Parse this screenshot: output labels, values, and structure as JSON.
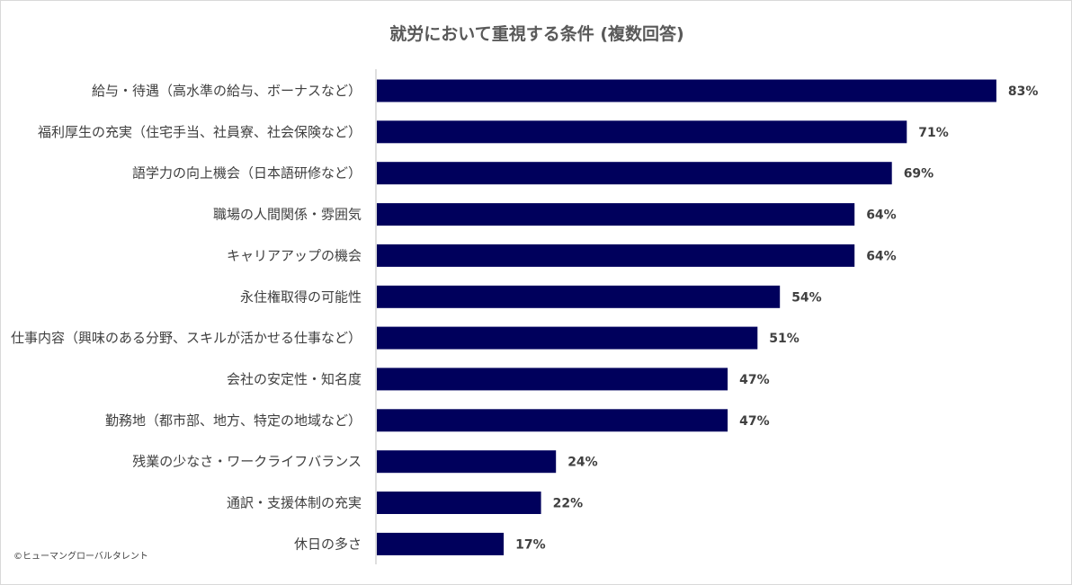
{
  "chart_data": {
    "type": "bar",
    "orientation": "horizontal",
    "title": "就労において重視する条件 (複数回答)",
    "categories": [
      "給与・待遇（高水準の給与、ボーナスなど）",
      "福利厚生の充実（住宅手当、社員寮、社会保険など）",
      "語学力の向上機会（日本語研修など）",
      "職場の人間関係・雰囲気",
      "キャリアアップの機会",
      "永住権取得の可能性",
      "仕事内容（興味のある分野、スキルが活かせる仕事など）",
      "会社の安定性・知名度",
      "勤務地（都市部、地方、特定の地域など）",
      "残業の少なさ・ワークライフバランス",
      "通訳・支援体制の充実",
      "休日の多さ"
    ],
    "values": [
      83,
      71,
      69,
      64,
      64,
      54,
      51,
      47,
      47,
      24,
      22,
      17
    ],
    "value_labels": [
      "83%",
      "71%",
      "69%",
      "64%",
      "64%",
      "54%",
      "51%",
      "47%",
      "47%",
      "24%",
      "22%",
      "17%"
    ],
    "unit": "%",
    "xlim": [
      0,
      100
    ],
    "grid": false,
    "legend": "none",
    "bar_color": "#00005c"
  },
  "footer": {
    "copyright": "©ヒューマングローバルタレント"
  }
}
